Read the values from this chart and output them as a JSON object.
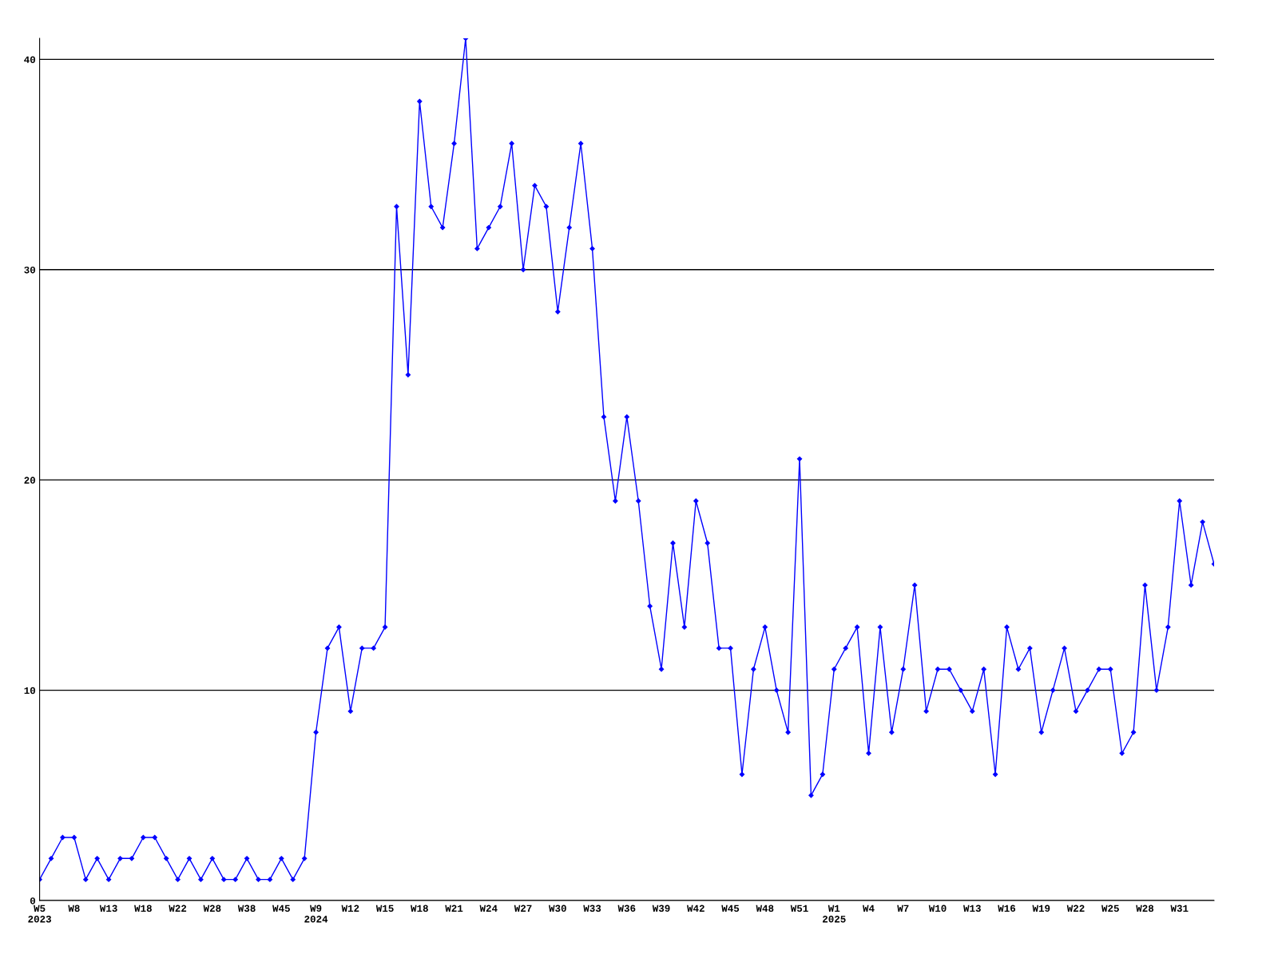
{
  "chart_data": {
    "type": "line",
    "categories": [
      "W5\n2023",
      null,
      null,
      "W8",
      null,
      null,
      "W13",
      null,
      null,
      "W18",
      null,
      null,
      "W22",
      null,
      null,
      "W28",
      null,
      null,
      "W38",
      null,
      null,
      "W45",
      null,
      null,
      "W9\n2024",
      null,
      null,
      "W12",
      null,
      null,
      "W15",
      null,
      null,
      "W18",
      null,
      null,
      "W21",
      null,
      null,
      "W24",
      null,
      null,
      "W27",
      null,
      null,
      "W30",
      null,
      null,
      "W33",
      null,
      null,
      "W36",
      null,
      null,
      "W39",
      null,
      null,
      "W42",
      null,
      null,
      "W45",
      null,
      null,
      "W48",
      null,
      null,
      "W51",
      null,
      null,
      "W1\n2025",
      null,
      null,
      "W4",
      null,
      null,
      "W7",
      null,
      null,
      "W10",
      null,
      null,
      "W13",
      null,
      null,
      "W16",
      null,
      null,
      "W19",
      null,
      null,
      "W22",
      null,
      null,
      "W25",
      null,
      null,
      "W28",
      null,
      null,
      "W31",
      null,
      null,
      null
    ],
    "series": [
      {
        "color": "#0000ff",
        "values": [
          1,
          2,
          3,
          3,
          1,
          2,
          1,
          2,
          2,
          3,
          3,
          2,
          1,
          2,
          1,
          2,
          1,
          1,
          2,
          1,
          1,
          2,
          1,
          2,
          8,
          12,
          13,
          9,
          12,
          12,
          13,
          33,
          25,
          38,
          33,
          32,
          36,
          41,
          31,
          32,
          33,
          36,
          30,
          34,
          33,
          28,
          32,
          36,
          31,
          23,
          19,
          23,
          19,
          14,
          11,
          17,
          13,
          19,
          17,
          12,
          12,
          6,
          11,
          13,
          10,
          8,
          21,
          5,
          6,
          11,
          12,
          13,
          7,
          13,
          8,
          11,
          15,
          9,
          11,
          11,
          10,
          9,
          11,
          6,
          13,
          11,
          12,
          8,
          10,
          12,
          9,
          10,
          11,
          11,
          7,
          8,
          15,
          10,
          13,
          19,
          15,
          18,
          16
        ]
      }
    ],
    "ylim": [
      0,
      41
    ],
    "yticks": [
      0,
      10,
      20,
      30,
      40
    ],
    "grid": "y",
    "marker": "diamond",
    "line_style": "solid"
  }
}
